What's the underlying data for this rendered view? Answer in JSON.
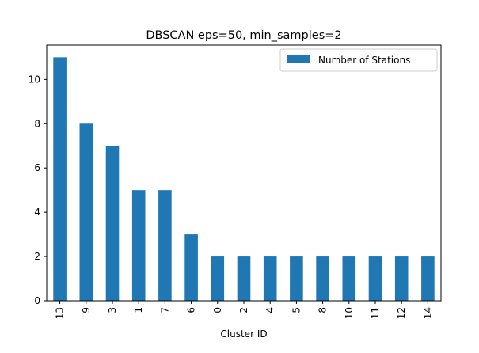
{
  "chart_data": {
    "type": "bar",
    "title": "DBSCAN eps=50, min_samples=2",
    "xlabel": "Cluster ID",
    "ylabel": "",
    "categories": [
      "13",
      "9",
      "3",
      "1",
      "7",
      "6",
      "0",
      "2",
      "4",
      "5",
      "8",
      "10",
      "11",
      "12",
      "14"
    ],
    "series": [
      {
        "name": "Number of Stations",
        "values": [
          11,
          8,
          7,
          5,
          5,
          3,
          2,
          2,
          2,
          2,
          2,
          2,
          2,
          2,
          2
        ]
      }
    ],
    "ylim": [
      0,
      11.55
    ],
    "yticks": [
      0,
      2,
      4,
      6,
      8,
      10
    ],
    "grid": false,
    "legend_position": "upper right",
    "colors": {
      "bar": "#1f77b4",
      "axis": "#000000"
    }
  }
}
